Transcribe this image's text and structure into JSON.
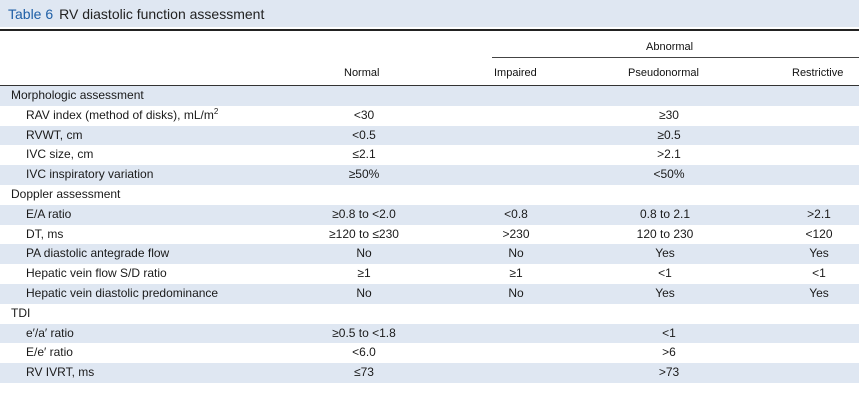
{
  "table": {
    "number": "Table 6",
    "title": "RV diastolic function assessment",
    "headers": {
      "abnormal": "Abnormal",
      "normal": "Normal",
      "impaired": "Impaired",
      "pseudonormal": "Pseudonormal",
      "restrictive": "Restrictive"
    },
    "rows": [
      {
        "type": "section",
        "label": "Morphologic assessment"
      },
      {
        "type": "span",
        "label": "RAV index (method of disks), mL/m",
        "label_sup": "2",
        "normal": "<30",
        "abnormal": "≥30"
      },
      {
        "type": "span",
        "label": "RVWT, cm",
        "normal": "<0.5",
        "abnormal": "≥0.5"
      },
      {
        "type": "span",
        "label": "IVC size, cm",
        "normal": "≤2.1",
        "abnormal": ">2.1"
      },
      {
        "type": "span",
        "label": "IVC inspiratory variation",
        "normal": "≥50%",
        "abnormal": "<50%"
      },
      {
        "type": "section",
        "label": "Doppler assessment"
      },
      {
        "type": "full",
        "label": "E/A ratio",
        "normal": "≥0.8 to <2.0",
        "impaired": "<0.8",
        "pseudonormal": "0.8 to 2.1",
        "restrictive": ">2.1"
      },
      {
        "type": "full",
        "label": "DT, ms",
        "normal": "≥120 to ≤230",
        "impaired": ">230",
        "pseudonormal": "120 to 230",
        "restrictive": "<120"
      },
      {
        "type": "full",
        "label": "PA diastolic antegrade flow",
        "normal": "No",
        "impaired": "No",
        "pseudonormal": "Yes",
        "restrictive": "Yes"
      },
      {
        "type": "full",
        "label": "Hepatic vein flow S/D ratio",
        "normal": "≥1",
        "impaired": "≥1",
        "pseudonormal": "<1",
        "restrictive": "<1"
      },
      {
        "type": "full",
        "label": "Hepatic vein diastolic predominance",
        "normal": "No",
        "impaired": "No",
        "pseudonormal": "Yes",
        "restrictive": "Yes"
      },
      {
        "type": "section",
        "label": "TDI"
      },
      {
        "type": "span",
        "label": "e′/a′ ratio",
        "normal": "≥0.5 to <1.8",
        "abnormal": "<1"
      },
      {
        "type": "span",
        "label": "E/e′ ratio",
        "normal": "<6.0",
        "abnormal": ">6"
      },
      {
        "type": "span",
        "label": "RV IVRT, ms",
        "normal": "≤73",
        "abnormal": ">73"
      }
    ]
  }
}
